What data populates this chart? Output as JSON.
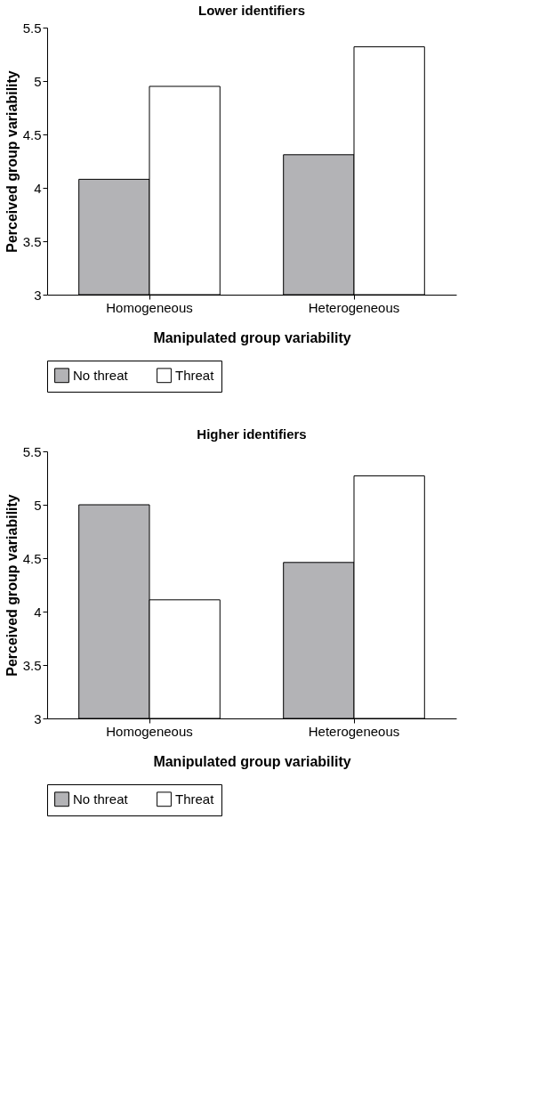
{
  "chart_data": [
    {
      "type": "bar",
      "title": "Lower identifiers",
      "xlabel": "Manipulated group variability",
      "ylabel": "Perceived group variability",
      "categories": [
        "Homogeneous",
        "Heterogeneous"
      ],
      "series": [
        {
          "name": "No threat",
          "color": "#b3b3b6",
          "values": [
            4.08,
            4.31
          ]
        },
        {
          "name": "Threat",
          "color": "#ffffff",
          "values": [
            4.95,
            5.32
          ]
        }
      ],
      "ylim": [
        3,
        5.5
      ],
      "yticks": [
        3,
        3.5,
        4,
        4.5,
        5,
        5.5
      ],
      "legend": "bottom",
      "grid": false
    },
    {
      "type": "bar",
      "title": "Higher identifiers",
      "xlabel": "Manipulated group variability",
      "ylabel": "Perceived group variability",
      "categories": [
        "Homogeneous",
        "Heterogeneous"
      ],
      "series": [
        {
          "name": "No threat",
          "color": "#b3b3b6",
          "values": [
            5.0,
            4.46
          ]
        },
        {
          "name": "Threat",
          "color": "#ffffff",
          "values": [
            4.11,
            5.27
          ]
        }
      ],
      "ylim": [
        3,
        5.5
      ],
      "yticks": [
        3,
        3.5,
        4,
        4.5,
        5,
        5.5
      ],
      "legend": "bottom",
      "grid": false
    }
  ]
}
